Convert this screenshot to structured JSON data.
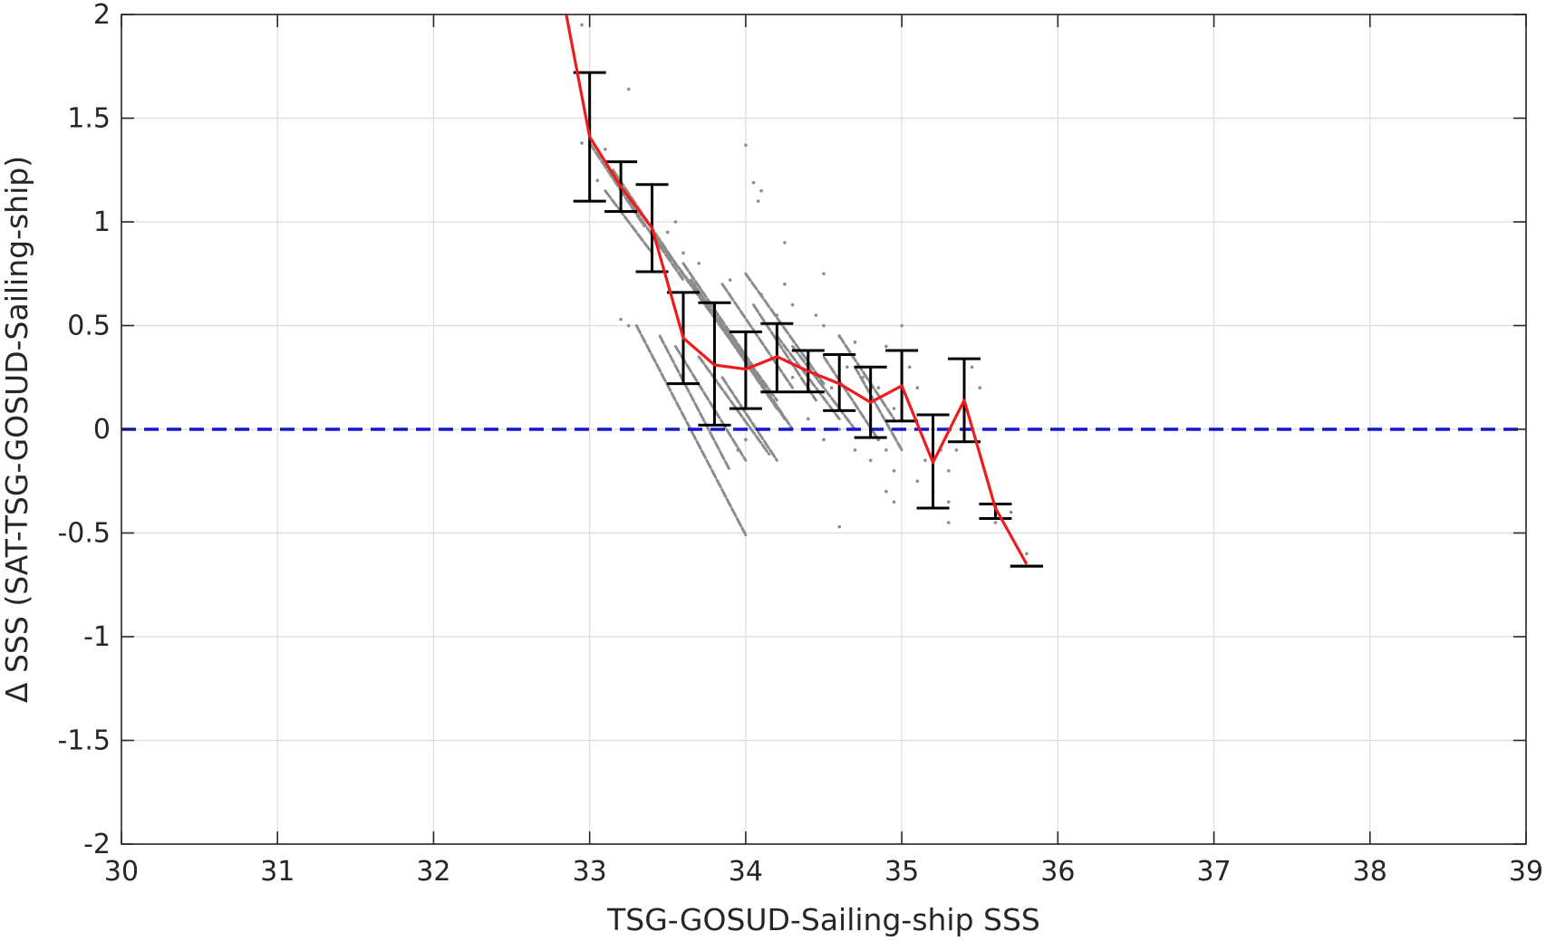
{
  "chart_data": {
    "type": "scatter",
    "title": "",
    "xlabel": "TSG-GOSUD-Sailing-ship SSS",
    "ylabel": "Δ SSS (SAT-TSG-GOSUD-Sailing-ship)",
    "xlim": [
      30,
      39
    ],
    "ylim": [
      -2,
      2
    ],
    "xticks": [
      30,
      31,
      32,
      33,
      34,
      35,
      36,
      37,
      38,
      39
    ],
    "yticks": [
      -2,
      -1.5,
      -1,
      -0.5,
      0,
      0.5,
      1,
      1.5,
      2
    ],
    "xtick_labels": [
      "30",
      "31",
      "32",
      "33",
      "34",
      "35",
      "36",
      "37",
      "38",
      "39"
    ],
    "ytick_labels": [
      "-2",
      "-1.5",
      "-1",
      "-0.5",
      "0",
      "0.5",
      "1",
      "1.5",
      "2"
    ],
    "grid": true,
    "colors": {
      "scatter": "#8c8c8c",
      "mean_line": "#ee1c1c",
      "error_bars": "#000000",
      "zero_line": "#1515d0",
      "grid": "#dcdcdc",
      "axes": "#262626"
    },
    "zero_line": {
      "y": 0,
      "style": "dashed"
    },
    "binned_mean": {
      "x": [
        32.85,
        33.0,
        33.2,
        33.4,
        33.6,
        33.8,
        34.0,
        34.2,
        34.4,
        34.6,
        34.8,
        35.0,
        35.2,
        35.4,
        35.6,
        35.8
      ],
      "y": [
        2.0,
        1.41,
        1.17,
        0.97,
        0.44,
        0.31,
        0.29,
        0.35,
        0.28,
        0.22,
        0.13,
        0.21,
        -0.16,
        0.14,
        -0.38,
        -0.65
      ]
    },
    "error_bars": [
      {
        "x": 33.0,
        "low": 1.1,
        "high": 1.72
      },
      {
        "x": 33.2,
        "low": 1.05,
        "high": 1.29
      },
      {
        "x": 33.4,
        "low": 0.76,
        "high": 1.18
      },
      {
        "x": 33.6,
        "low": 0.22,
        "high": 0.66
      },
      {
        "x": 33.8,
        "low": 0.02,
        "high": 0.61
      },
      {
        "x": 34.0,
        "low": 0.1,
        "high": 0.47
      },
      {
        "x": 34.2,
        "low": 0.18,
        "high": 0.51
      },
      {
        "x": 34.4,
        "low": 0.18,
        "high": 0.38
      },
      {
        "x": 34.6,
        "low": 0.09,
        "high": 0.36
      },
      {
        "x": 34.8,
        "low": -0.04,
        "high": 0.3
      },
      {
        "x": 35.0,
        "low": 0.04,
        "high": 0.38
      },
      {
        "x": 35.2,
        "low": -0.38,
        "high": 0.07
      },
      {
        "x": 35.4,
        "low": -0.06,
        "high": 0.34
      },
      {
        "x": 35.6,
        "low": -0.43,
        "high": -0.36
      },
      {
        "x": 35.8,
        "low": -0.66,
        "high": -0.66
      }
    ],
    "scatter_streaks": [
      {
        "x1": 33.0,
        "y1": 1.38,
        "x2": 33.35,
        "y2": 0.98
      },
      {
        "x1": 33.15,
        "y1": 1.25,
        "x2": 33.55,
        "y2": 0.8
      },
      {
        "x1": 33.25,
        "y1": 1.1,
        "x2": 33.6,
        "y2": 0.72
      },
      {
        "x1": 33.4,
        "y1": 0.95,
        "x2": 33.75,
        "y2": 0.6
      },
      {
        "x1": 33.5,
        "y1": 0.85,
        "x2": 33.95,
        "y2": 0.38
      },
      {
        "x1": 33.6,
        "y1": 0.8,
        "x2": 34.05,
        "y2": 0.3
      },
      {
        "x1": 33.65,
        "y1": 0.72,
        "x2": 34.1,
        "y2": 0.22
      },
      {
        "x1": 33.7,
        "y1": 0.66,
        "x2": 34.2,
        "y2": 0.14
      },
      {
        "x1": 33.75,
        "y1": 0.6,
        "x2": 34.2,
        "y2": 0.1
      },
      {
        "x1": 33.8,
        "y1": 0.55,
        "x2": 34.25,
        "y2": 0.05
      },
      {
        "x1": 33.85,
        "y1": 0.7,
        "x2": 34.3,
        "y2": 0.2
      },
      {
        "x1": 33.9,
        "y1": 0.45,
        "x2": 34.3,
        "y2": 0.0
      },
      {
        "x1": 34.0,
        "y1": 0.75,
        "x2": 34.5,
        "y2": 0.22
      },
      {
        "x1": 34.05,
        "y1": 0.6,
        "x2": 34.45,
        "y2": 0.14
      },
      {
        "x1": 33.3,
        "y1": 0.5,
        "x2": 34.0,
        "y2": -0.51
      },
      {
        "x1": 33.45,
        "y1": 0.45,
        "x2": 33.9,
        "y2": -0.2
      },
      {
        "x1": 33.55,
        "y1": 0.4,
        "x2": 34.0,
        "y2": -0.15
      },
      {
        "x1": 33.7,
        "y1": 0.35,
        "x2": 34.15,
        "y2": -0.12
      },
      {
        "x1": 33.85,
        "y1": 0.25,
        "x2": 34.2,
        "y2": -0.15
      },
      {
        "x1": 34.2,
        "y1": 0.45,
        "x2": 34.6,
        "y2": 0.05
      },
      {
        "x1": 34.3,
        "y1": 0.4,
        "x2": 34.7,
        "y2": 0.0
      },
      {
        "x1": 34.5,
        "y1": 0.35,
        "x2": 34.85,
        "y2": -0.05
      },
      {
        "x1": 34.6,
        "y1": 0.45,
        "x2": 34.95,
        "y2": 0.05
      },
      {
        "x1": 34.7,
        "y1": 0.3,
        "x2": 35.0,
        "y2": -0.1
      },
      {
        "x1": 33.1,
        "y1": 1.15,
        "x2": 33.4,
        "y2": 0.85
      }
    ],
    "scatter_points": [
      [
        33.25,
        1.64
      ],
      [
        33.1,
        1.35
      ],
      [
        34.0,
        1.37
      ],
      [
        34.05,
        1.19
      ],
      [
        34.1,
        1.15
      ],
      [
        34.08,
        1.1
      ],
      [
        34.25,
        0.9
      ],
      [
        34.25,
        0.7
      ],
      [
        34.5,
        0.75
      ],
      [
        33.2,
        0.53
      ],
      [
        33.25,
        0.5
      ],
      [
        32.95,
        1.38
      ],
      [
        34.6,
        0.45
      ],
      [
        34.7,
        0.42
      ],
      [
        34.9,
        0.4
      ],
      [
        35.0,
        0.5
      ],
      [
        34.95,
        0.1
      ],
      [
        34.9,
        -0.1
      ],
      [
        34.95,
        -0.2
      ],
      [
        34.9,
        -0.3
      ],
      [
        34.95,
        -0.35
      ],
      [
        35.1,
        -0.25
      ],
      [
        35.2,
        -0.3
      ],
      [
        35.3,
        -0.35
      ],
      [
        35.15,
        -0.15
      ],
      [
        35.3,
        -0.45
      ],
      [
        35.3,
        -0.2
      ],
      [
        35.35,
        -0.1
      ],
      [
        35.45,
        0.3
      ],
      [
        35.5,
        0.2
      ],
      [
        34.6,
        -0.47
      ],
      [
        35.6,
        -0.45
      ],
      [
        35.7,
        -0.4
      ],
      [
        35.8,
        -0.6
      ],
      [
        34.8,
        -0.15
      ],
      [
        34.7,
        -0.1
      ],
      [
        34.85,
        0.2
      ],
      [
        34.45,
        0.55
      ],
      [
        34.5,
        0.5
      ],
      [
        34.2,
        0.55
      ],
      [
        33.55,
        1.0
      ],
      [
        33.5,
        0.95
      ],
      [
        33.45,
        0.9
      ],
      [
        33.6,
        0.85
      ],
      [
        33.7,
        0.8
      ],
      [
        33.9,
        0.72
      ],
      [
        34.1,
        0.65
      ],
      [
        34.3,
        0.6
      ],
      [
        34.65,
        0.3
      ],
      [
        34.75,
        0.25
      ],
      [
        34.8,
        0.05
      ],
      [
        34.85,
        -0.05
      ],
      [
        35.05,
        0.3
      ],
      [
        35.1,
        0.2
      ],
      [
        35.2,
        0.0
      ],
      [
        35.25,
        -0.1
      ],
      [
        34.6,
        0.0
      ],
      [
        34.5,
        -0.05
      ],
      [
        34.4,
        0.05
      ],
      [
        34.0,
        -0.05
      ],
      [
        33.95,
        -0.1
      ],
      [
        33.8,
        0.0
      ],
      [
        32.95,
        1.95
      ],
      [
        33.05,
        1.2
      ],
      [
        34.3,
        0.25
      ],
      [
        34.55,
        0.2
      ]
    ]
  }
}
